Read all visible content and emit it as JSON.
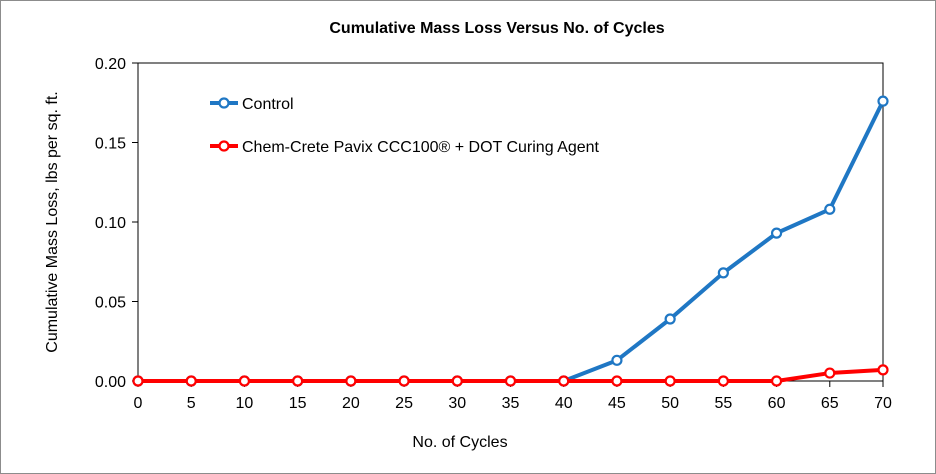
{
  "chart_data": {
    "type": "line",
    "title": "Cumulative Mass Loss Versus No. of Cycles",
    "xlabel": "No. of Cycles",
    "ylabel": "Cumulative Mass Loss, lbs per sq. ft.",
    "xlim": [
      0,
      70
    ],
    "ylim": [
      0,
      0.2
    ],
    "xticks": [
      0,
      5,
      10,
      15,
      20,
      25,
      30,
      35,
      40,
      45,
      50,
      55,
      60,
      65,
      70
    ],
    "xtick_labels": [
      "0",
      "5",
      "10",
      "15",
      "20",
      "25",
      "30",
      "35",
      "40",
      "45",
      "50",
      "55",
      "60",
      "65",
      "70"
    ],
    "yticks": [
      0,
      0.05,
      0.1,
      0.15,
      0.2
    ],
    "ytick_labels": [
      "0.00",
      "0.05",
      "0.10",
      "0.15",
      "0.20"
    ],
    "grid": false,
    "legend_position": "top-left",
    "x": [
      0,
      5,
      10,
      15,
      20,
      25,
      30,
      35,
      40,
      45,
      50,
      55,
      60,
      65,
      70
    ],
    "series": [
      {
        "name": "Control",
        "color": "#1f77c4",
        "values": [
          0,
          0,
          0,
          0,
          0,
          0,
          0,
          0,
          0,
          0.013,
          0.039,
          0.068,
          0.093,
          0.108,
          0.176
        ]
      },
      {
        "name": "Chem-Crete Pavix CCC100® + DOT Curing Agent",
        "color": "#ff0000",
        "values": [
          0,
          0,
          0,
          0,
          0,
          0,
          0,
          0,
          0,
          0,
          0,
          0,
          0,
          0.005,
          0.007
        ]
      }
    ]
  }
}
